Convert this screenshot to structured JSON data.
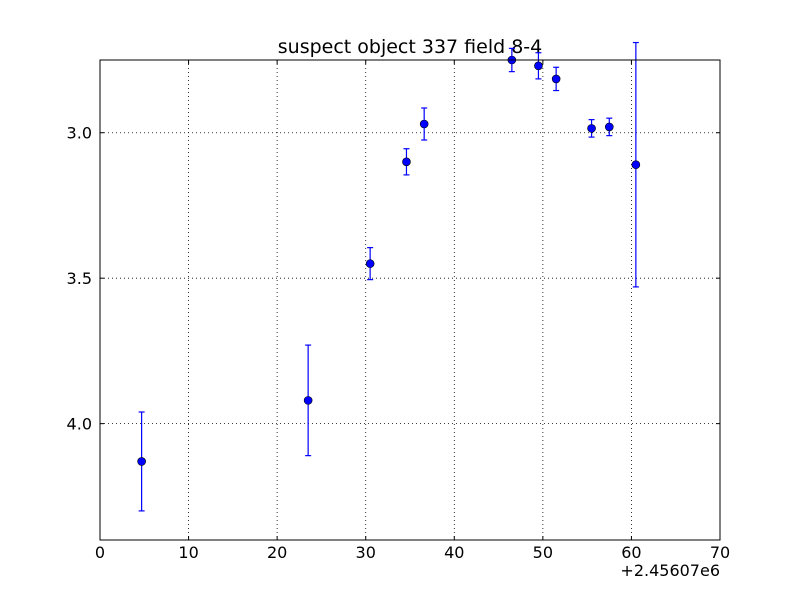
{
  "chart_data": {
    "type": "scatter",
    "title": "suspect object 337 field 8-4",
    "xlabel": "",
    "ylabel": "",
    "x_offset_label": "+2.45607e6",
    "xlim": [
      0,
      70
    ],
    "ylim": [
      4.4,
      2.75
    ],
    "y_inverted": true,
    "grid": true,
    "x_ticks": [
      0,
      10,
      20,
      30,
      40,
      50,
      60,
      70
    ],
    "x_tick_labels": [
      "0",
      "10",
      "20",
      "30",
      "40",
      "50",
      "60",
      "70"
    ],
    "y_ticks": [
      3.0,
      3.5,
      4.0
    ],
    "y_tick_labels": [
      "3.0",
      "3.5",
      "4.0"
    ],
    "marker_color": "#0000ff",
    "errorbar_color": "#0000ff",
    "points": [
      {
        "x": 4.7,
        "y": 4.13,
        "err": 0.17
      },
      {
        "x": 23.5,
        "y": 3.92,
        "err": 0.19
      },
      {
        "x": 30.5,
        "y": 3.45,
        "err": 0.055
      },
      {
        "x": 34.6,
        "y": 3.1,
        "err": 0.045
      },
      {
        "x": 36.6,
        "y": 2.97,
        "err": 0.055
      },
      {
        "x": 46.5,
        "y": 2.75,
        "err": 0.04
      },
      {
        "x": 49.5,
        "y": 2.77,
        "err": 0.045
      },
      {
        "x": 51.5,
        "y": 2.815,
        "err": 0.04
      },
      {
        "x": 55.5,
        "y": 2.985,
        "err": 0.03
      },
      {
        "x": 57.5,
        "y": 2.98,
        "err": 0.03
      },
      {
        "x": 60.5,
        "y": 3.11,
        "err": 0.42
      }
    ]
  }
}
